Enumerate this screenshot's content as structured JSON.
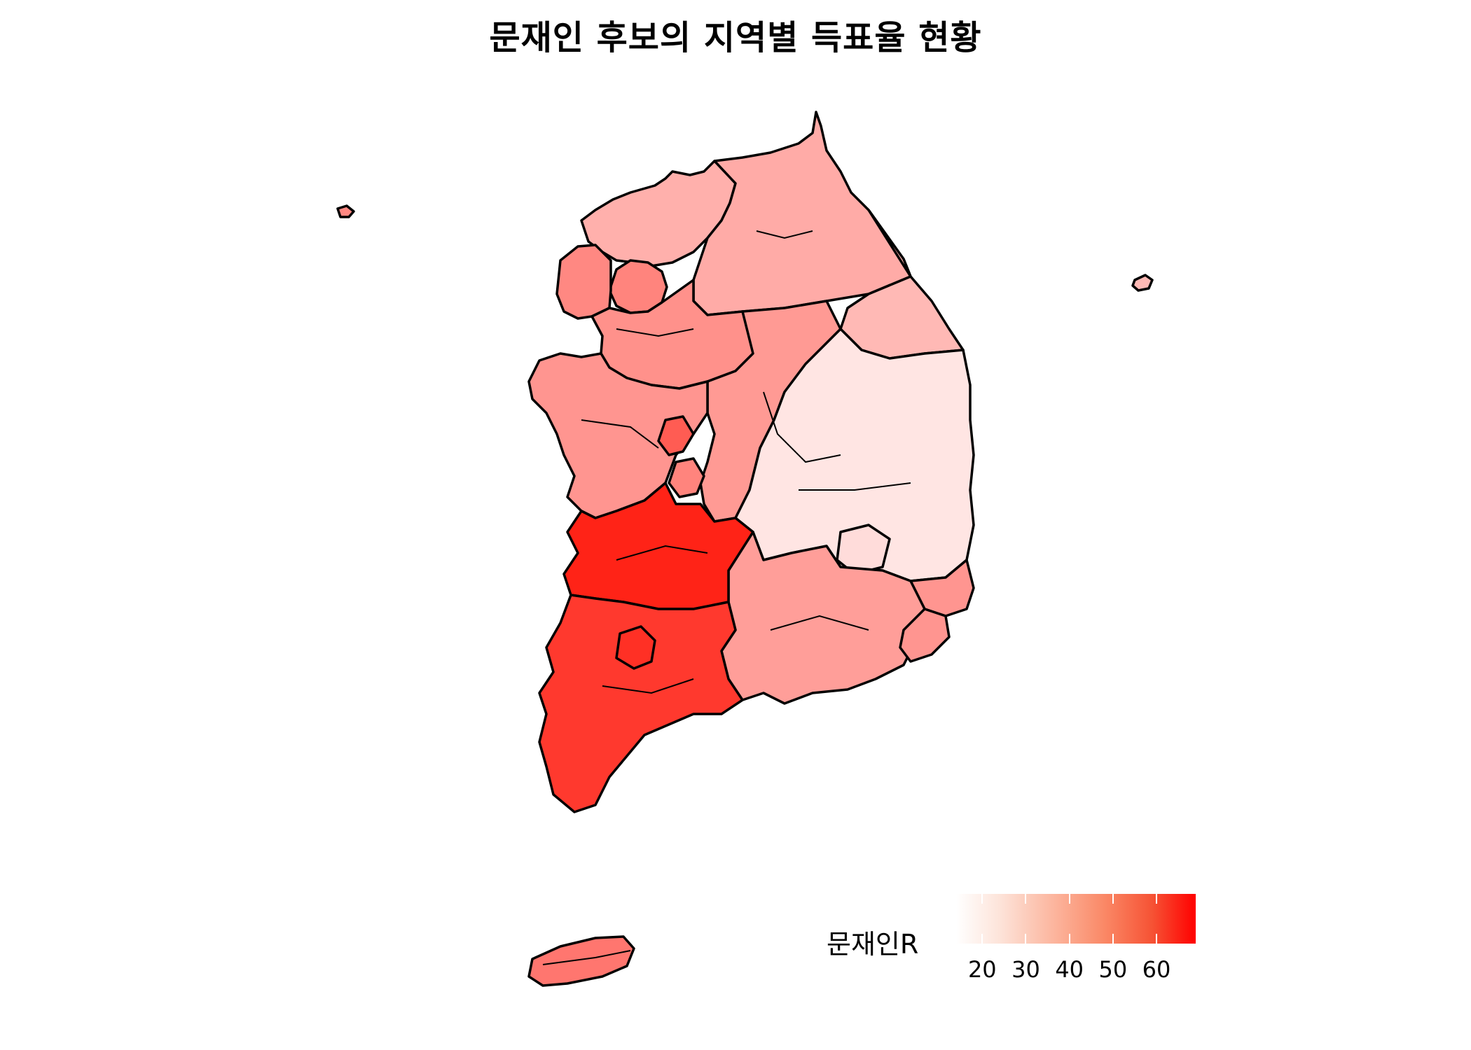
{
  "title": "문재인 후보의 지역별 득표율 현황",
  "legend": {
    "label": "문재인R",
    "range": [
      14,
      69
    ],
    "ticks": [
      "20",
      "30",
      "40",
      "50",
      "60"
    ],
    "colors": {
      "low": "#ffffff",
      "high": "#ff0000",
      "border": "#000000"
    }
  },
  "regions": [
    {
      "name": "Gyeonggi-north",
      "value": 32
    },
    {
      "name": "Gangwon-west",
      "value": 33
    },
    {
      "name": "Gangwon-east",
      "value": 30
    },
    {
      "name": "Seoul",
      "value": 42
    },
    {
      "name": "Incheon",
      "value": 41
    },
    {
      "name": "Gyeonggi-south",
      "value": 39
    },
    {
      "name": "Chungbuk",
      "value": 37
    },
    {
      "name": "Chungnam",
      "value": 38
    },
    {
      "name": "Sejong",
      "value": 51
    },
    {
      "name": "Daejeon",
      "value": 42
    },
    {
      "name": "Gyeongbuk",
      "value": 20
    },
    {
      "name": "Daegu",
      "value": 22
    },
    {
      "name": "Ulsan",
      "value": 38
    },
    {
      "name": "Gyeongnam",
      "value": 36
    },
    {
      "name": "Busan",
      "value": 38
    },
    {
      "name": "Jeonbuk",
      "value": 64
    },
    {
      "name": "Jeonnam",
      "value": 59
    },
    {
      "name": "Gwangju",
      "value": 61
    },
    {
      "name": "Jeju",
      "value": 45
    },
    {
      "name": "Ulleungdo",
      "value": 30
    },
    {
      "name": "Baengnyeongdo",
      "value": 41
    }
  ]
}
